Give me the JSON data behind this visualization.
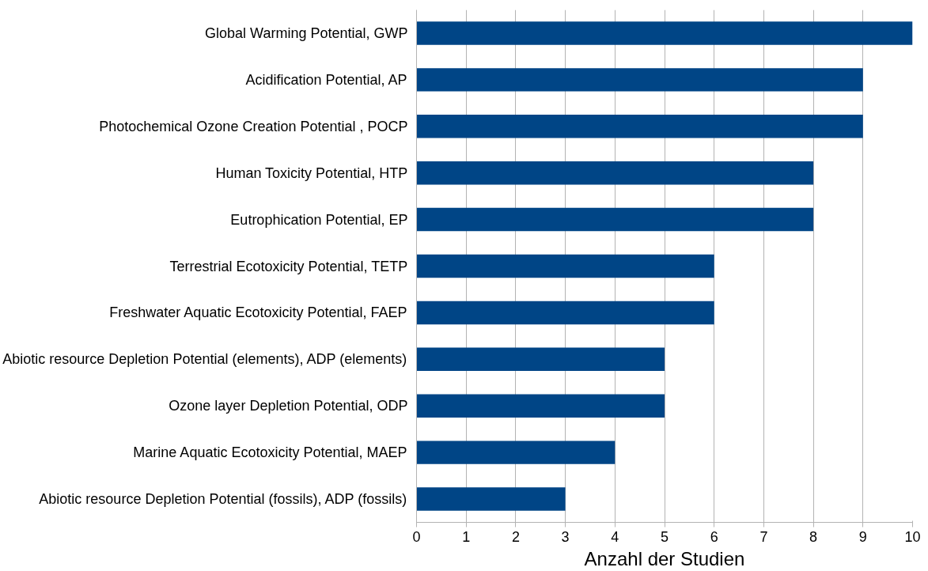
{
  "chart_data": {
    "type": "bar",
    "orientation": "horizontal",
    "xlabel": "Anzahl der Studien",
    "categories": [
      "Global Warming Potential, GWP",
      "Acidification Potential, AP",
      "Photochemical Ozone Creation Potential , POCP",
      "Human Toxicity Potential, HTP",
      "Eutrophication Potential, EP",
      "Terrestrial Ecotoxicity Potential, TETP",
      "Freshwater Aquatic Ecotoxicity Potential, FAEP",
      "Abiotic resource Depletion Potential (elements), ADP (elements)",
      "Ozone layer Depletion Potential, ODP",
      "Marine Aquatic Ecotoxicity Potential, MAEP",
      "Abiotic resource Depletion Potential (fossils), ADP (fossils)"
    ],
    "values": [
      10,
      9,
      9,
      8,
      8,
      6,
      6,
      5,
      5,
      4,
      3
    ],
    "color": "#004586",
    "xlim": [
      0,
      10
    ],
    "xticks": [
      0,
      1,
      2,
      3,
      4,
      5,
      6,
      7,
      8,
      9,
      10
    ],
    "grid": "x"
  }
}
